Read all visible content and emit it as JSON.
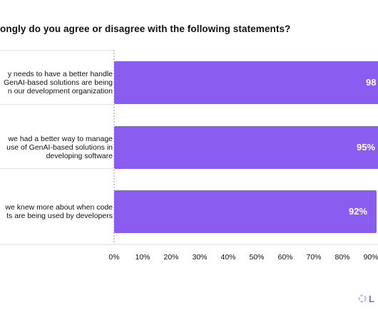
{
  "header": {
    "title": "ongly do you agree or disagree with the following statements?"
  },
  "chart_data": {
    "type": "bar",
    "orientation": "horizontal",
    "title": "ongly do you agree or disagree with the following statements?",
    "categories": [
      "y needs to have a better handle\nGenAI-based solutions are being\nn our development organization",
      "we had a better way to manage\nuse of GenAI-based solutions in\ndeveloping software",
      "we knew more about when code\nts are being used by developers"
    ],
    "values": [
      98,
      95,
      92
    ],
    "value_labels": [
      "98",
      "95%",
      "92%"
    ],
    "xlim": [
      0,
      100
    ],
    "x_ticks": [
      "0%",
      "10%",
      "20%",
      "30%",
      "40%",
      "50%",
      "60%",
      "70%",
      "80%",
      "90%"
    ],
    "bar_color": "#8a5cf0",
    "grid": false,
    "legend": "none"
  },
  "logo": {
    "icon": "company-logo-icon",
    "text": "L",
    "color": "#8a5cf0"
  }
}
